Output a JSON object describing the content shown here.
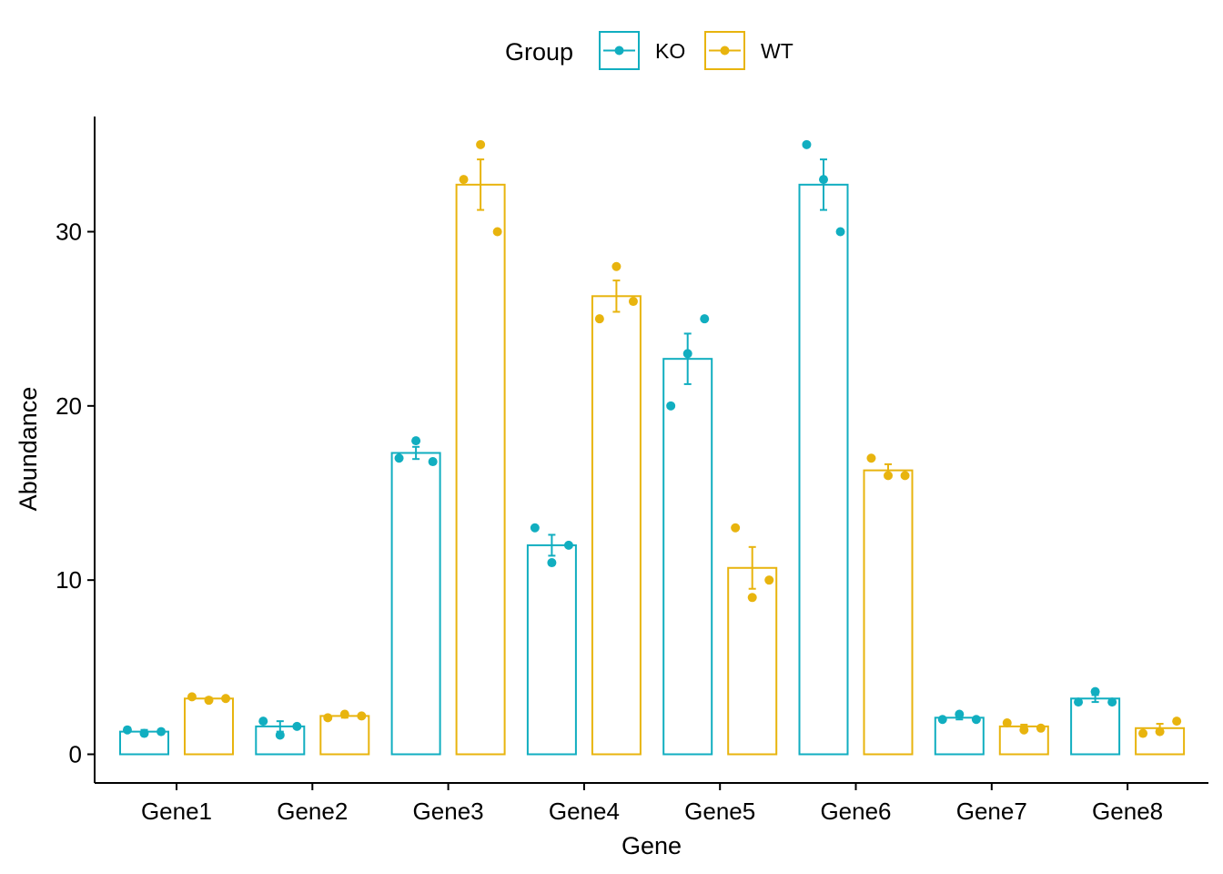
{
  "chart_data": {
    "type": "bar",
    "title": "",
    "xlabel": "Gene",
    "ylabel": "Abundance",
    "ylim": [
      -1.7,
      36.5
    ],
    "yticks": [
      0,
      10,
      20,
      30
    ],
    "ytick_labels": [
      "0",
      "10",
      "20",
      "30"
    ],
    "categories": [
      "Gene1",
      "Gene2",
      "Gene3",
      "Gene4",
      "Gene5",
      "Gene6",
      "Gene7",
      "Gene8"
    ],
    "legend": {
      "title": "Group",
      "position": "top"
    },
    "series": [
      {
        "name": "KO",
        "color": "#11AEC0",
        "values": [
          1.3,
          1.6,
          17.3,
          12.0,
          22.7,
          32.7,
          2.1,
          3.2
        ],
        "errors": [
          0.1,
          0.3,
          0.35,
          0.6,
          1.45,
          1.45,
          0.1,
          0.2
        ],
        "points": [
          [
            1.4,
            1.2,
            1.3
          ],
          [
            1.9,
            1.1,
            1.6
          ],
          [
            17.0,
            18.0,
            16.8
          ],
          [
            13.0,
            11.0,
            12.0
          ],
          [
            20.0,
            23.0,
            25.0
          ],
          [
            35.0,
            33.0,
            30.0
          ],
          [
            2.0,
            2.3,
            2.0
          ],
          [
            3.0,
            3.6,
            3.0
          ]
        ]
      },
      {
        "name": "WT",
        "color": "#E8B40E",
        "values": [
          3.2,
          2.2,
          32.7,
          26.3,
          10.7,
          16.3,
          1.6,
          1.5
        ],
        "errors": [
          0.05,
          0.1,
          1.45,
          0.9,
          1.2,
          0.35,
          0.1,
          0.25
        ],
        "points": [
          [
            3.3,
            3.1,
            3.2
          ],
          [
            2.1,
            2.3,
            2.2
          ],
          [
            33.0,
            35.0,
            30.0
          ],
          [
            25.0,
            28.0,
            26.0
          ],
          [
            13.0,
            9.0,
            10.0
          ],
          [
            17.0,
            16.0,
            16.0
          ],
          [
            1.8,
            1.4,
            1.5
          ],
          [
            1.2,
            1.3,
            1.9
          ]
        ]
      }
    ]
  }
}
